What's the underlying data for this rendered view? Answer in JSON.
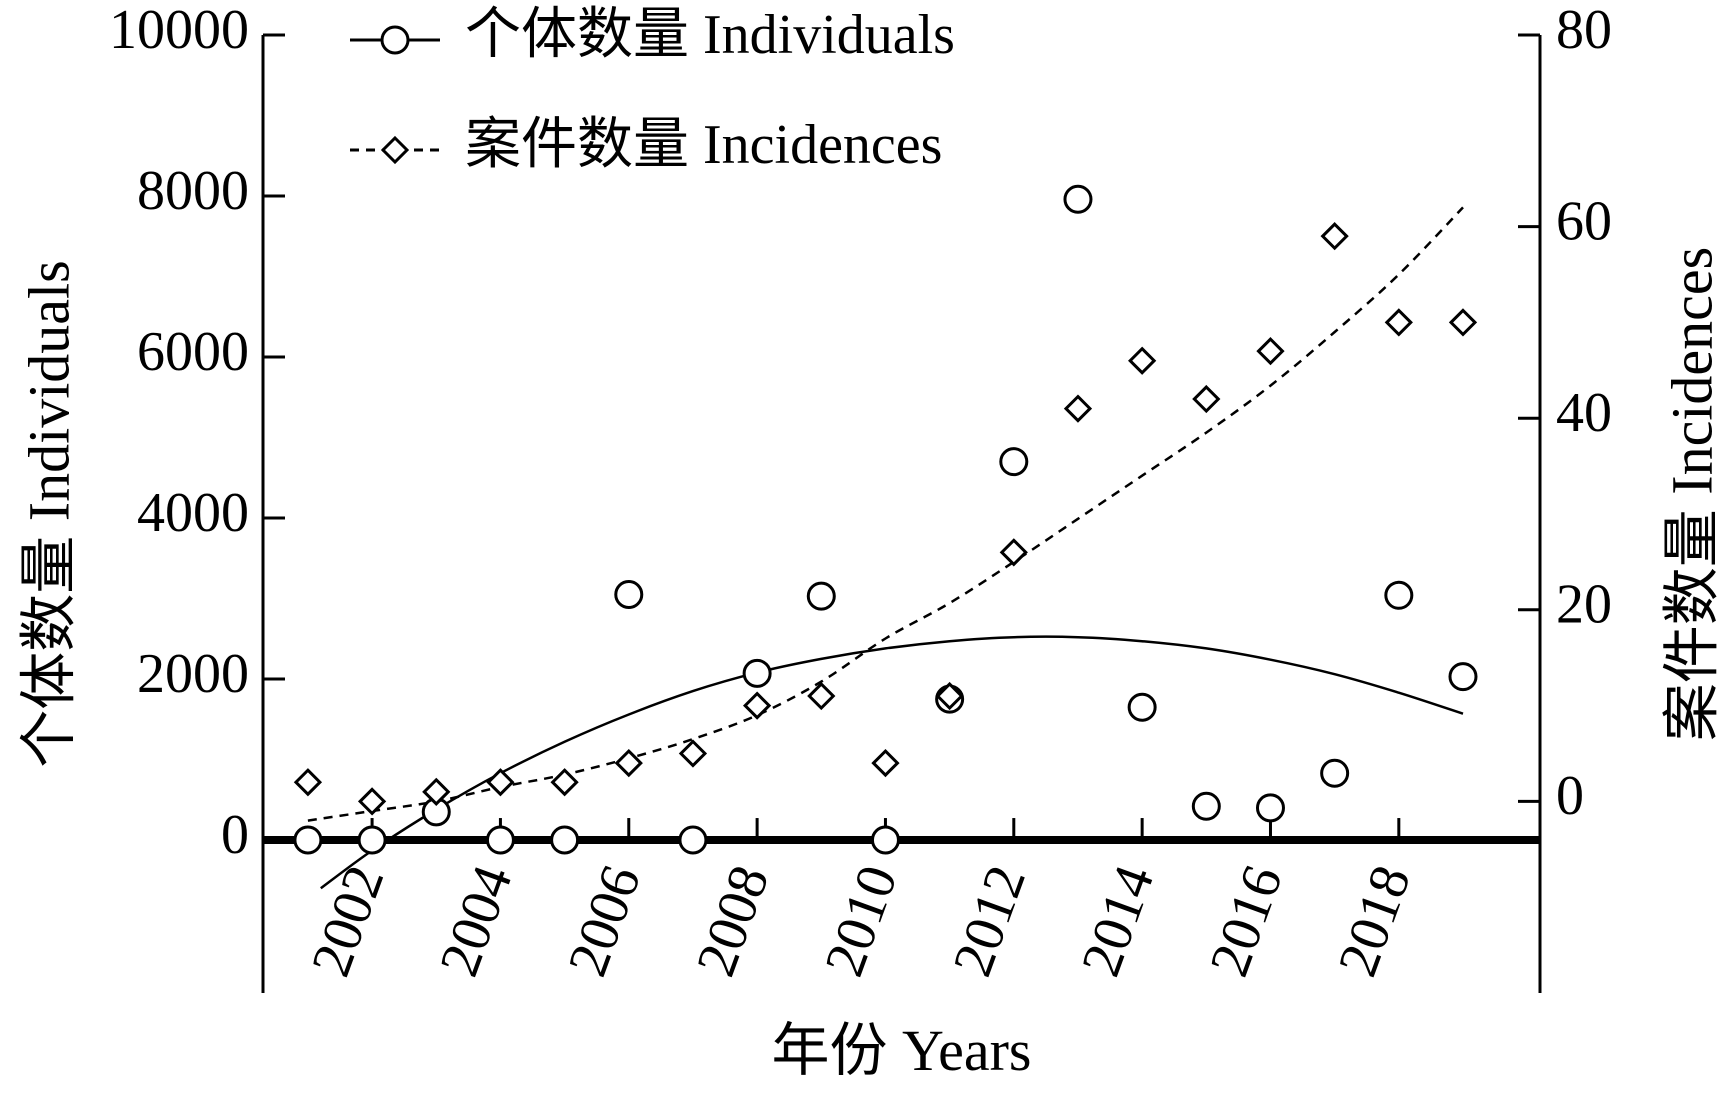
{
  "chart_data": {
    "type": "scatter",
    "xlabel": "年份 Years",
    "ylabel_left": "个体数量 Individuals",
    "ylabel_right": "案件数量 Incidences",
    "x_ticks": [
      2002,
      2004,
      2006,
      2008,
      2010,
      2012,
      2014,
      2016,
      2018
    ],
    "xlim": [
      2000.3,
      2020.2
    ],
    "y_left_ticks": [
      0,
      2000,
      4000,
      6000,
      8000,
      10000
    ],
    "y_left_lim": [
      -1900,
      10000
    ],
    "y_right_ticks": [
      0,
      20,
      40,
      60,
      80
    ],
    "y_right_lim": [
      -20,
      80
    ],
    "legend_position": "top-left",
    "series": [
      {
        "name": "个体数量 Individuals",
        "axis": "left",
        "marker": "circle",
        "line_style": "solid",
        "x": [
          2001,
          2002,
          2003,
          2004,
          2005,
          2006,
          2007,
          2008,
          2009,
          2010,
          2011,
          2012,
          2013,
          2014,
          2015,
          2016,
          2017,
          2018,
          2019
        ],
        "y": [
          0,
          0,
          350,
          0,
          0,
          3050,
          0,
          2070,
          3030,
          0,
          1750,
          4700,
          7960,
          1650,
          420,
          400,
          830,
          3040,
          2030
        ],
        "fit_x": [
          2001.2,
          2002,
          2003,
          2004,
          2005,
          2006,
          2007,
          2008,
          2009,
          2010,
          2011,
          2012,
          2013,
          2014,
          2015,
          2016,
          2017,
          2018,
          2019
        ],
        "fit_y": [
          -600,
          -130,
          380,
          830,
          1220,
          1560,
          1850,
          2080,
          2250,
          2380,
          2470,
          2520,
          2520,
          2470,
          2380,
          2240,
          2060,
          1830,
          1570
        ]
      },
      {
        "name": "案件数量 Incidences",
        "axis": "right",
        "marker": "diamond",
        "line_style": "dashed",
        "x": [
          2001,
          2002,
          2003,
          2004,
          2005,
          2006,
          2007,
          2008,
          2009,
          2010,
          2011,
          2012,
          2013,
          2014,
          2015,
          2016,
          2017,
          2018,
          2019
        ],
        "y": [
          2,
          0,
          1,
          2,
          2,
          4,
          5,
          10,
          11,
          4,
          11,
          26,
          41,
          46,
          42,
          47,
          59,
          50,
          50
        ],
        "fit_x": [
          2001,
          2002,
          2003,
          2004,
          2005,
          2006,
          2007,
          2008,
          2009,
          2010,
          2011,
          2012,
          2013,
          2014,
          2015,
          2016,
          2017,
          2018,
          2019
        ],
        "fit_y": [
          -2,
          -1,
          0,
          1.5,
          2.8,
          4.5,
          6.5,
          9,
          12.5,
          17,
          20.7,
          25,
          29.5,
          34,
          38.5,
          43.4,
          49,
          55,
          62
        ]
      }
    ]
  }
}
